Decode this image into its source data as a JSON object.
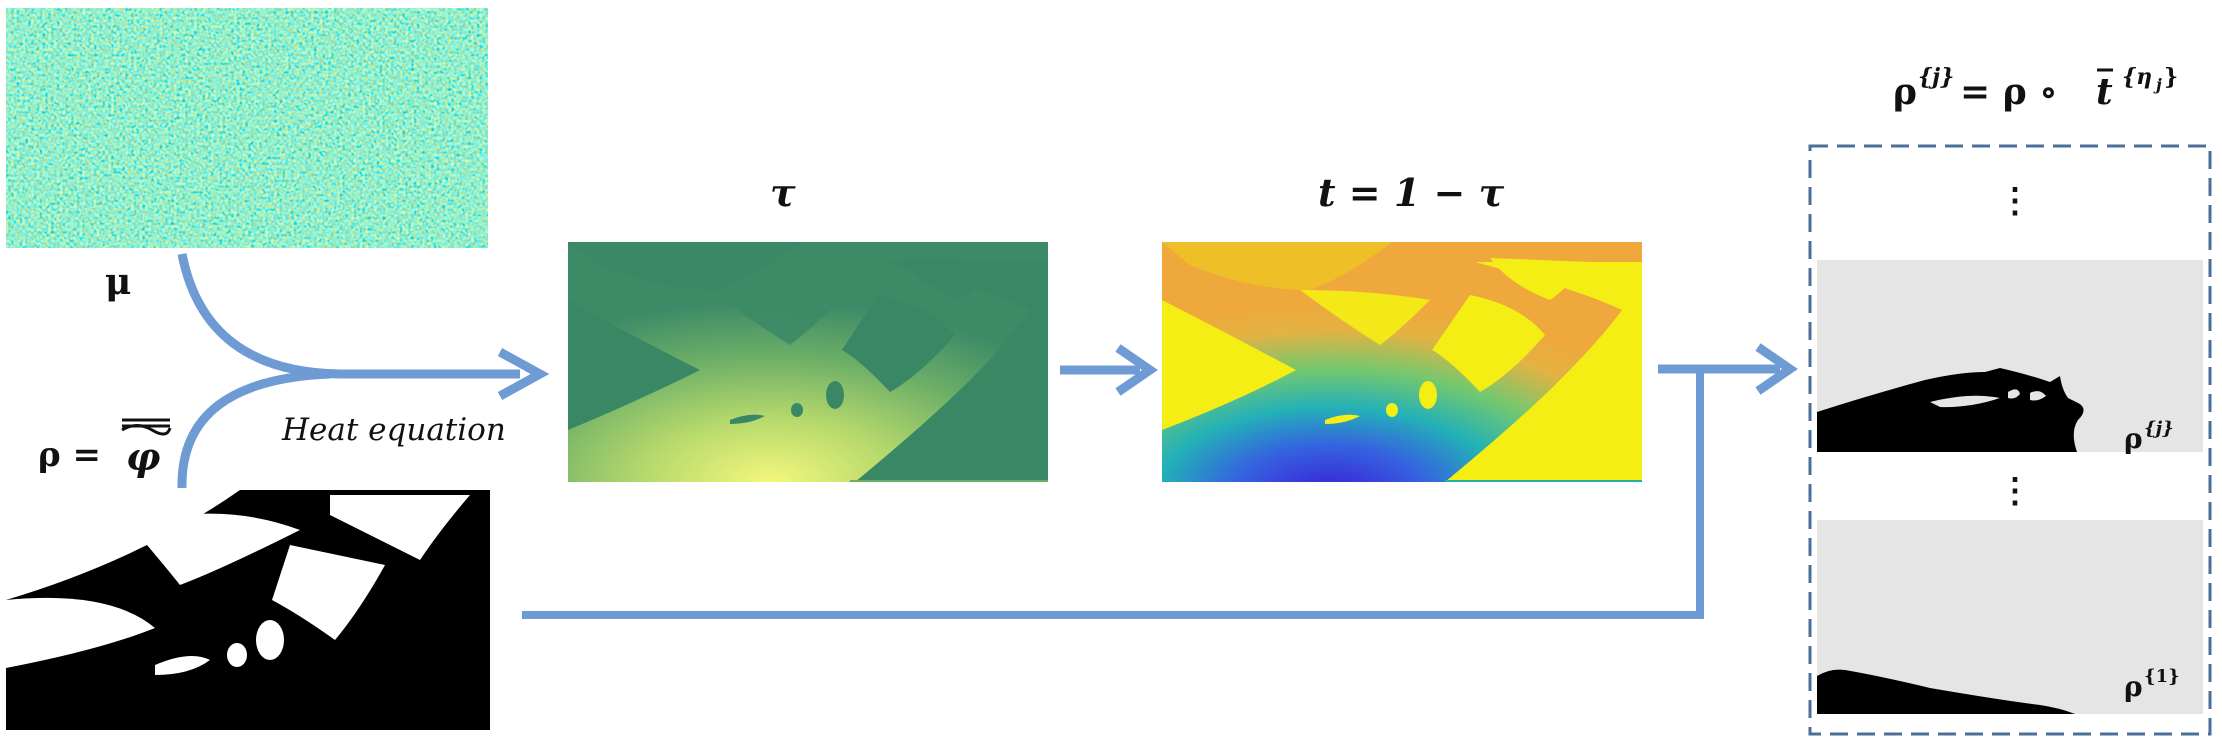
{
  "labels": {
    "mu": "μ",
    "rho_eq": "ρ = ",
    "phi_bar": "φ",
    "tau": "τ",
    "t_eq": "t = 1 − τ",
    "heat": "Heat equation",
    "rhoj_rho": "ρ",
    "rhoj_sup": "{j}",
    "rhoj_eq": " = ρ ∘ ",
    "rhoj_t": "t",
    "rhoj_tsup": "{η",
    "rhoj_tsub": "j",
    "rhoj_tclose": "}",
    "vdots": "⋮",
    "panel_rho": "ρ",
    "panel_sup_j": "{j}",
    "panel_sup_1": "{1}"
  },
  "colors": {
    "arrow": "#6f9bd4",
    "dashed_box": "#4a6f99",
    "panel_bg": "#e5e5e5",
    "tau_dark": "#3a8766",
    "tau_mid": "#7db866",
    "tau_light": "#eff47a",
    "t_yellow": "#f4ee14",
    "t_orange": "#efb33a",
    "t_teal": "#27b1a4",
    "t_blue": "#3c2ad2"
  }
}
